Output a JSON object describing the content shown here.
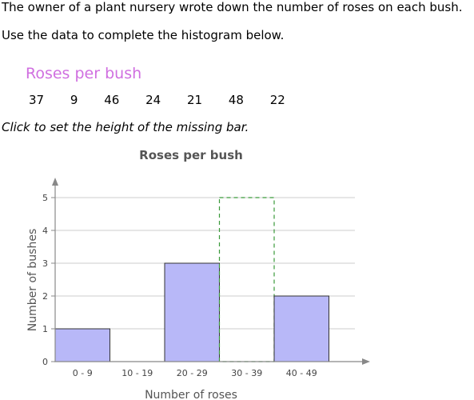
{
  "prompt": {
    "line1": "The owner of a plant nursery wrote down the number of roses on each bush.",
    "line2": "Use the data to complete the histogram below."
  },
  "data_table": {
    "title": "Roses per bush",
    "values": [
      "37",
      "9",
      "46",
      "24",
      "21",
      "48",
      "22"
    ]
  },
  "instruction": "Click to set the height of the missing bar.",
  "chart_data": {
    "type": "bar",
    "title": "Roses per bush",
    "xlabel": "Number of roses",
    "ylabel": "Number of bushes",
    "categories": [
      "0 - 9",
      "10 - 19",
      "20 - 29",
      "30 - 39",
      "40 - 49"
    ],
    "values": [
      1,
      0,
      3,
      null,
      2
    ],
    "missing_bar_index": 3,
    "missing_bar_placeholder_height": 5,
    "ylim": [
      0,
      5
    ],
    "yticks": [
      0,
      1,
      2,
      3,
      4,
      5
    ],
    "grid": true,
    "colors": {
      "bar_fill": "#b8b8f8",
      "bar_stroke": "#333333",
      "placeholder": "#3a9a3a",
      "grid": "#cccccc",
      "axis": "#888888"
    }
  }
}
